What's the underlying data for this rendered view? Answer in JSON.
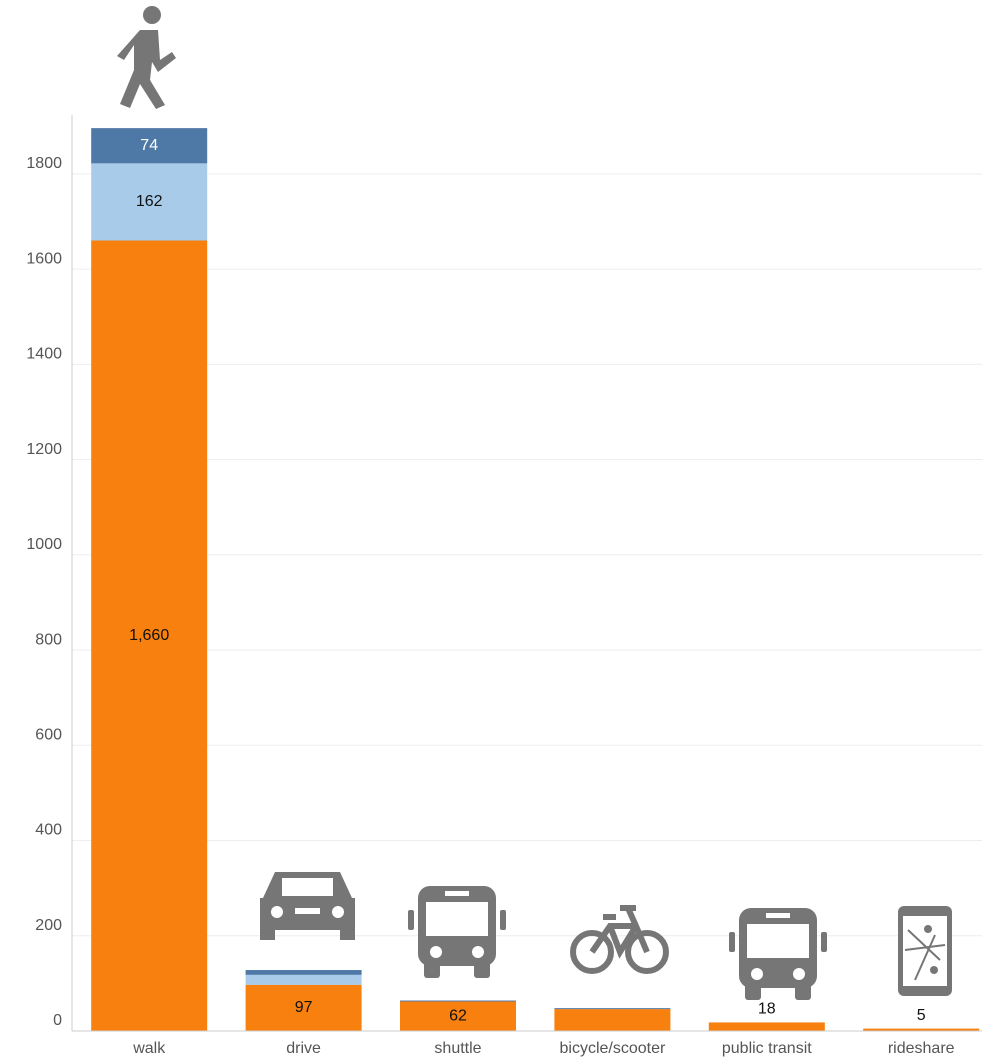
{
  "chart_data": {
    "type": "stacked_bar",
    "categories": [
      "walk",
      "drive",
      "shuttle",
      "bicycle/scooter",
      "public transit",
      "rideshare"
    ],
    "series": [
      {
        "color": "#f7800f",
        "values": [
          1660,
          97,
          62,
          46,
          18,
          5
        ],
        "value_labels": [
          "1,660",
          "97",
          "62",
          null,
          "18",
          "5"
        ]
      },
      {
        "color": "#a7cbe8",
        "values": [
          162,
          21,
          0,
          0,
          0,
          0
        ],
        "value_labels": [
          "162",
          null,
          null,
          null,
          null,
          null
        ]
      },
      {
        "color": "#4e78a6",
        "values": [
          74,
          10,
          2,
          2,
          0,
          0
        ],
        "value_labels": [
          "74",
          null,
          null,
          null,
          null,
          null
        ]
      }
    ],
    "ylim": [
      0,
      1900
    ],
    "yticks": [
      0,
      200,
      400,
      600,
      800,
      1000,
      1200,
      1400,
      1600,
      1800
    ],
    "grid": true
  }
}
